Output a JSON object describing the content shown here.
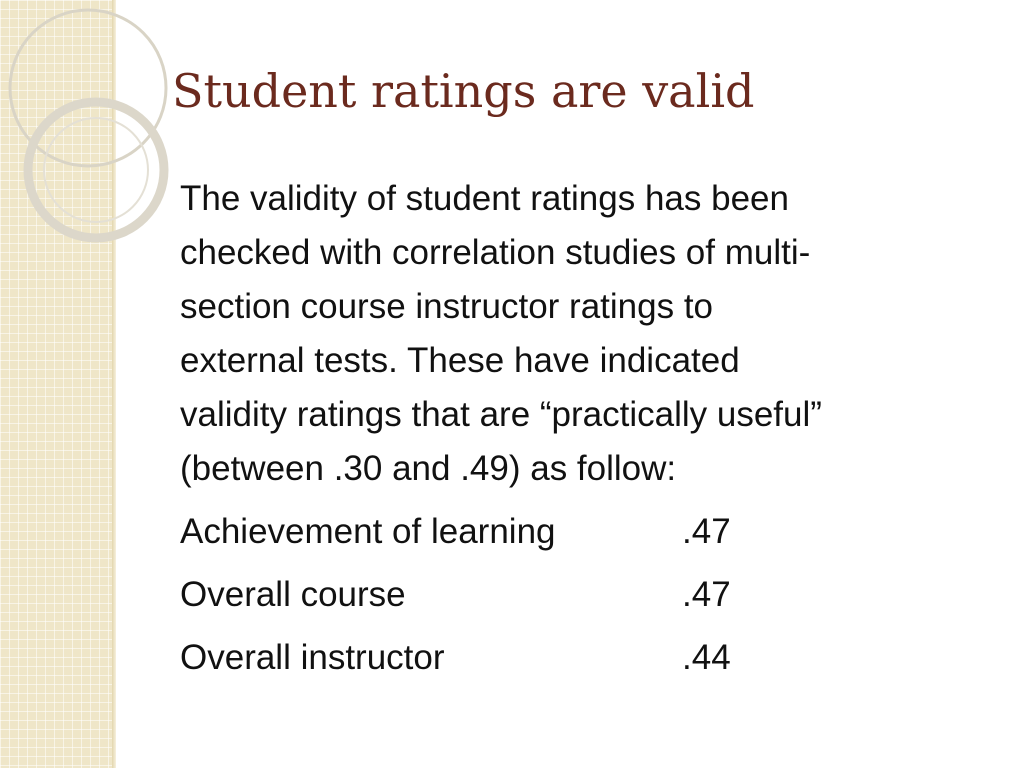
{
  "slide": {
    "title": "Student ratings are valid",
    "paragraph_lines": [
      "The validity of student ratings has been",
      "checked with correlation studies of multi-",
      "section course instructor ratings to",
      "external tests. These have indicated",
      "validity ratings that are “practically useful”",
      "(between .30 and .49) as follow:"
    ],
    "ratings": [
      {
        "label": "Achievement of learning",
        "value": ".47"
      },
      {
        "label": "Overall course",
        "value": ".47"
      },
      {
        "label": "Overall instructor",
        "value": ".44"
      }
    ]
  },
  "theme": {
    "title_color": "#6b2a1e",
    "text_color": "#111111",
    "band_color": "#efe6c8",
    "ring_color": "#d9d4c6"
  }
}
